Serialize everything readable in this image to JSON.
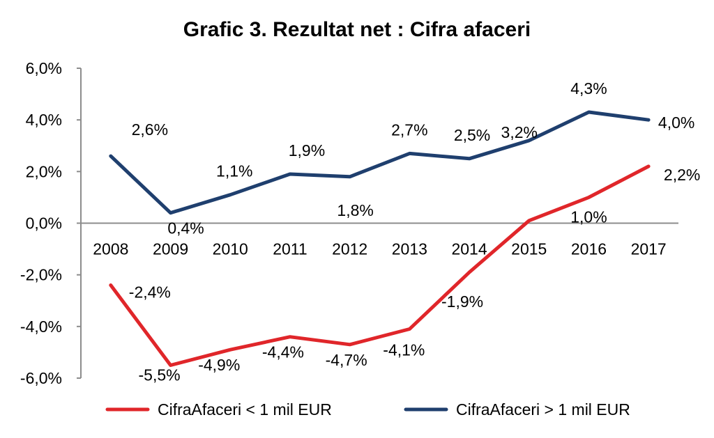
{
  "chart_data": {
    "type": "line",
    "title": "Grafic 3. Rezultat net : Cifra afaceri",
    "x": [
      "2008",
      "2009",
      "2010",
      "2011",
      "2012",
      "2013",
      "2014",
      "2015",
      "2016",
      "2017"
    ],
    "ylim": [
      -6.0,
      6.0
    ],
    "yticks": [
      6.0,
      4.0,
      2.0,
      0.0,
      -2.0,
      -4.0,
      -6.0
    ],
    "ytick_labels": [
      "6,0%",
      "4,0%",
      "2,0%",
      "0,0%",
      "-2,0%",
      "-4,0%",
      "-6,0%"
    ],
    "grid": false,
    "legend_position": "bottom",
    "series": [
      {
        "name": "CifraAfaceri < 1 mil EUR",
        "color": "#e0262a",
        "values": [
          -2.4,
          -5.5,
          -4.9,
          -4.4,
          -4.7,
          -4.1,
          -1.9,
          0.1,
          1.0,
          2.2
        ],
        "labels": [
          "-2,4%",
          "-5,5%",
          "-4,9%",
          "-4,4%",
          "-4,7%",
          "-4,1%",
          "-1,9%",
          "",
          "1,0%",
          "2,2%"
        ]
      },
      {
        "name": "CifraAfaceri > 1 mil EUR",
        "color": "#1f3f6e",
        "values": [
          2.6,
          0.4,
          1.1,
          1.9,
          1.8,
          2.7,
          2.5,
          3.2,
          4.3,
          4.0
        ],
        "labels": [
          "2,6%",
          "0,4%",
          "1,1%",
          "1,9%",
          "1,8%",
          "2,7%",
          "2,5%",
          "3,2%",
          "4,3%",
          "4,0%"
        ]
      }
    ]
  }
}
